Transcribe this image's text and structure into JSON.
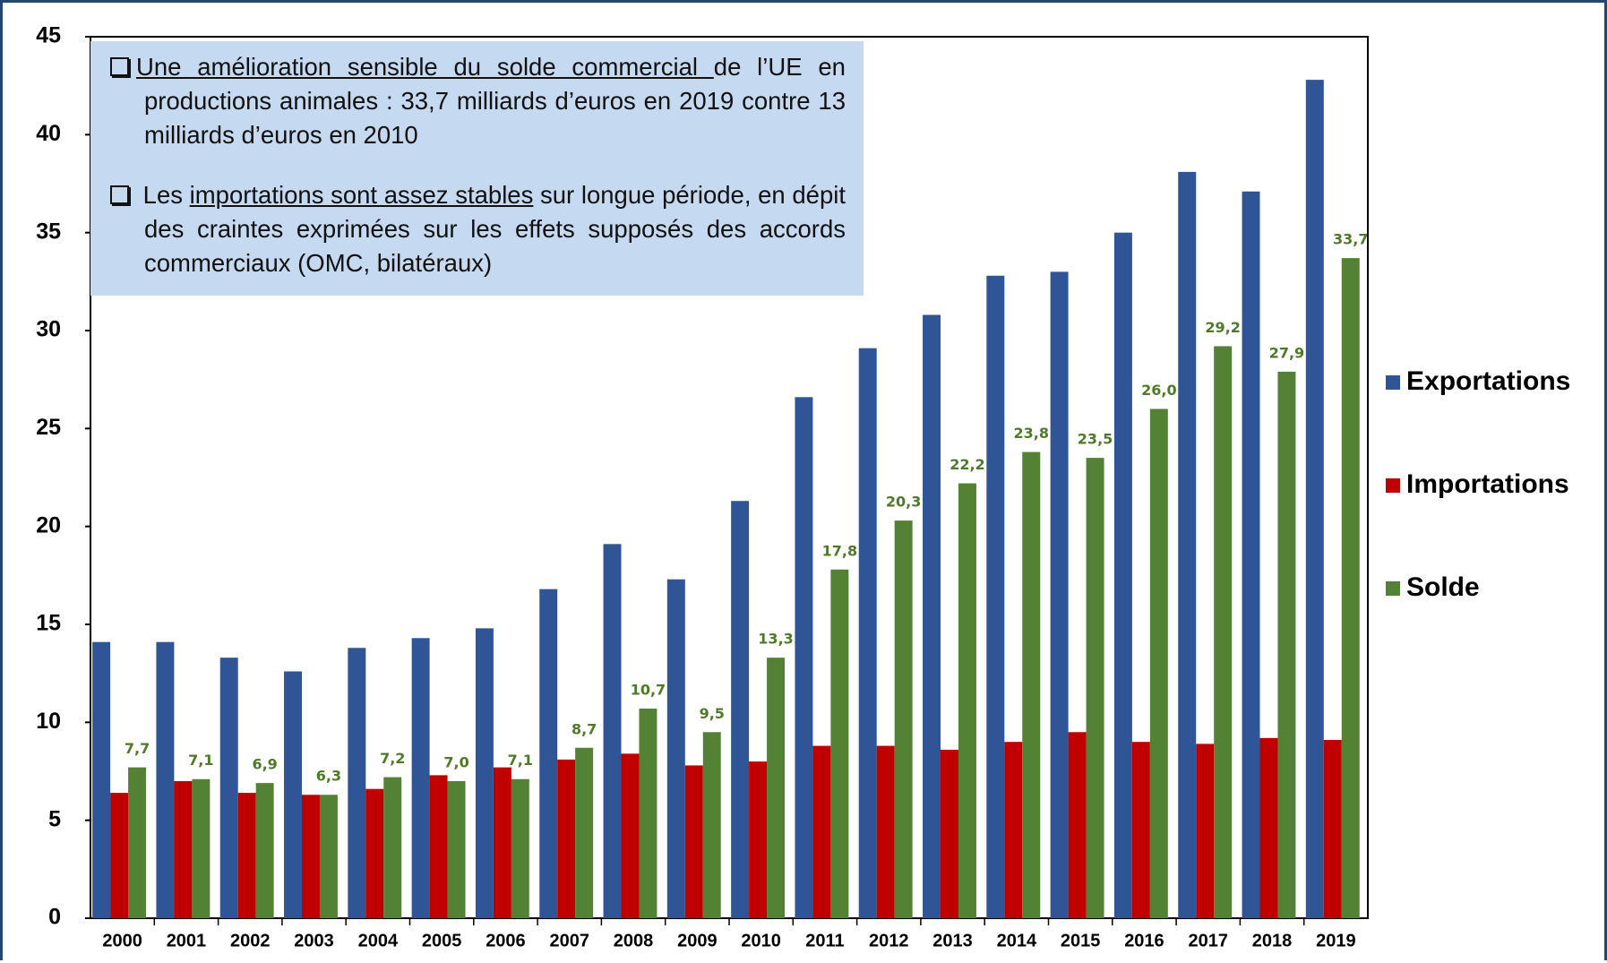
{
  "chart_data": {
    "type": "bar",
    "categories": [
      "2000",
      "2001",
      "2002",
      "2003",
      "2004",
      "2005",
      "2006",
      "2007",
      "2008",
      "2009",
      "2010",
      "2011",
      "2012",
      "2013",
      "2014",
      "2015",
      "2016",
      "2017",
      "2018",
      "2019"
    ],
    "series": [
      {
        "name": "Exportations",
        "color": "#2f5597",
        "values": [
          14.1,
          14.1,
          13.3,
          12.6,
          13.8,
          14.3,
          14.8,
          16.8,
          19.1,
          17.3,
          21.3,
          26.6,
          29.1,
          30.8,
          32.8,
          33.0,
          35.0,
          38.1,
          37.1,
          42.8
        ]
      },
      {
        "name": "Importations",
        "color": "#c00000",
        "values": [
          6.4,
          7.0,
          6.4,
          6.3,
          6.6,
          7.3,
          7.7,
          8.1,
          8.4,
          7.8,
          8.0,
          8.8,
          8.8,
          8.6,
          9.0,
          9.5,
          9.0,
          8.9,
          9.2,
          9.1
        ]
      },
      {
        "name": "Solde",
        "color": "#548235",
        "values": [
          7.7,
          7.1,
          6.9,
          6.3,
          7.2,
          7.0,
          7.1,
          8.7,
          10.7,
          9.5,
          13.3,
          17.8,
          20.3,
          22.2,
          23.8,
          23.5,
          26.0,
          29.2,
          27.9,
          33.7
        ],
        "value_labels": [
          "7,7",
          "7,1",
          "6,9",
          "6,3",
          "7,2",
          "7,0",
          "7,1",
          "8,7",
          "10,7",
          "9,5",
          "13,3",
          "17,8",
          "20,3",
          "22,2",
          "23,8",
          "23,5",
          "26,0",
          "29,2",
          "27,9",
          "33,7"
        ]
      }
    ],
    "ylim": [
      0,
      45
    ],
    "yticks": [
      0,
      5,
      10,
      15,
      20,
      25,
      30,
      35,
      40,
      45
    ],
    "grid": false,
    "legend": "right",
    "annotations": [
      {
        "underlined": "Une amélioration sensible du solde commercial ",
        "rest": "de l’UE en productions animales : 33,7 milliards d’euros en 2019 contre 13 milliards d’euros en 2010"
      },
      {
        "prefix": " Les ",
        "underlined": "importations sont assez stables",
        "rest": " sur longue période, en dépit des craintes exprimées sur les effets supposés des accords commerciaux (OMC, bilatéraux)"
      }
    ]
  }
}
